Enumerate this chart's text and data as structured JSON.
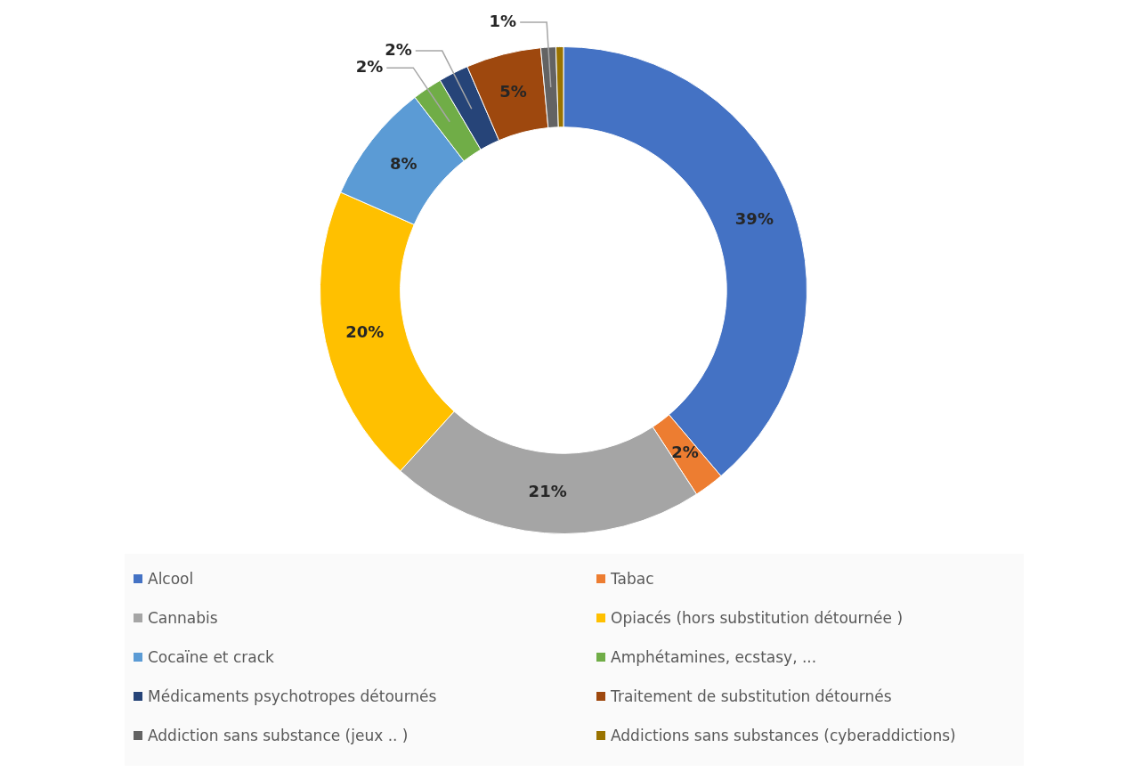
{
  "chart_data": {
    "type": "donut",
    "categories": [
      "Alcool",
      "Tabac",
      "Cannabis",
      "Opiacés (hors substitution détournée )",
      "Cocaïne et crack",
      "Amphétamines, ecstasy, ...",
      "Médicaments psychotropes détournés",
      "Traitement de substitution détournés",
      "Addiction sans substance (jeux .. )",
      "Addictions sans substances (cyberaddictions)"
    ],
    "values": [
      39,
      2,
      21,
      20,
      8,
      2,
      2,
      5,
      1,
      0.5
    ],
    "value_labels": [
      "39%",
      "2%",
      "21%",
      "20%",
      "8%",
      "2%",
      "2%",
      "5%",
      "1%",
      null
    ],
    "colors": [
      "#4472c4",
      "#ed7d31",
      "#a5a5a5",
      "#ffc000",
      "#5b9bd5",
      "#70ad47",
      "#264478",
      "#9e480e",
      "#636363",
      "#997300"
    ],
    "legend": "bottom"
  }
}
